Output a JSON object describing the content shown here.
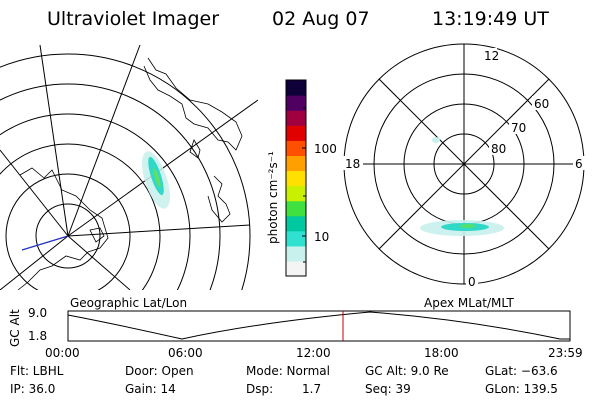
{
  "header": {
    "instrument": "Ultraviolet Imager",
    "date": "02 Aug 07",
    "time": "13:19:49 UT"
  },
  "geo_panel": {
    "label": "Geographic Lat/Lon"
  },
  "mag_panel": {
    "label": "Apex MLat/MLT",
    "mlt_labels": {
      "top": "12",
      "left": "18",
      "right": "6",
      "bottom": "0"
    },
    "lat_labels": [
      "60",
      "70",
      "80"
    ]
  },
  "colorbar": {
    "unit_label": "photon cm⁻²s⁻¹",
    "ticks": [
      "100",
      "10"
    ],
    "colors": [
      "#f4f4f4",
      "#c8f0ec",
      "#30e0d0",
      "#00c8a0",
      "#40e040",
      "#c8f000",
      "#ffe000",
      "#ffa000",
      "#ff5000",
      "#e00000",
      "#a00040",
      "#500060",
      "#10003a"
    ]
  },
  "altitude_plot": {
    "axis_label": "GC Alt",
    "y_labels": [
      "9.0",
      "1.8"
    ],
    "x_labels": [
      "00:00",
      "06:00",
      "12:00",
      "18:00",
      "23:59"
    ],
    "marker_color": "#c00000"
  },
  "footer": {
    "row1": {
      "flt": "Flt: LBHL",
      "door": "Door: Open",
      "mode": "Mode: Normal",
      "gcalt": "GC Alt: 9.0 Re",
      "glat": "GLat: −63.6"
    },
    "row2": {
      "ip": "IP: 36.0",
      "gain": "Gain: 14",
      "dsp_label": "Dsp:",
      "dsp_value": "1.7",
      "seq": "Seq: 39",
      "glon": "GLon: 139.5"
    }
  }
}
